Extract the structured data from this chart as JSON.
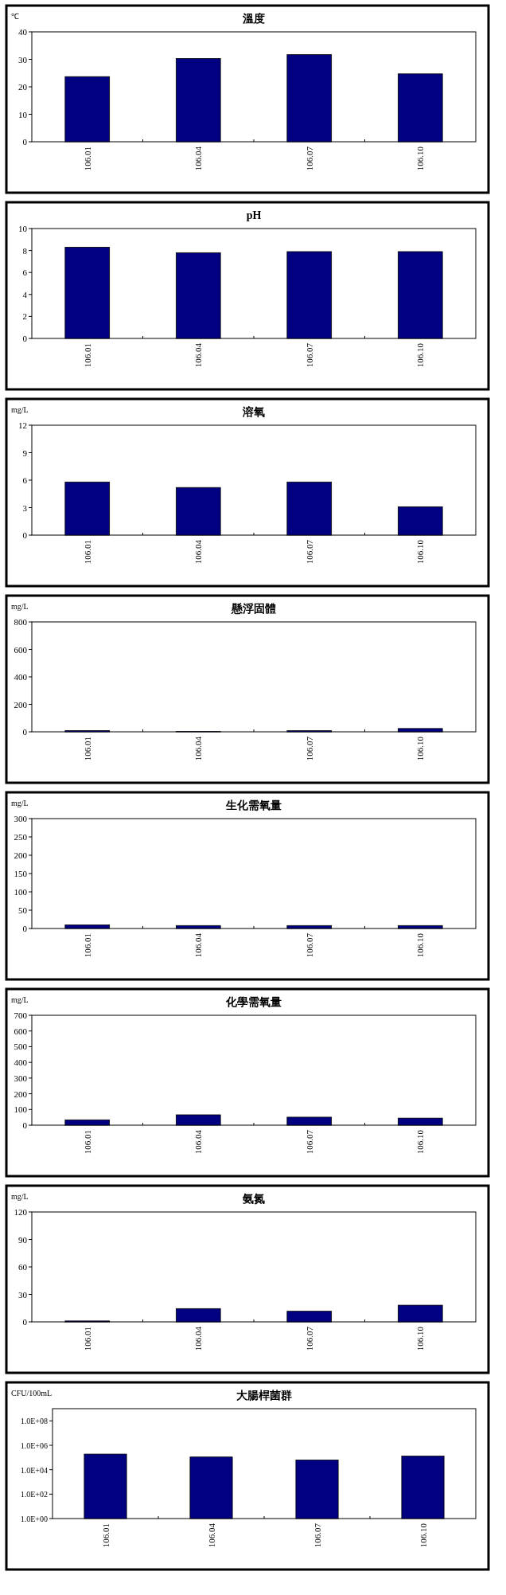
{
  "chart_data": [
    {
      "type": "bar",
      "title": "溫度",
      "ylabel": "℃",
      "categories": [
        "106.01",
        "106.04",
        "106.07",
        "106.10"
      ],
      "values": [
        23.7,
        30.3,
        31.7,
        24.7
      ],
      "color": "#000080",
      "ylim": [
        0,
        40
      ],
      "yticks": [
        0,
        10,
        20,
        30,
        40
      ]
    },
    {
      "type": "bar",
      "title": "pH",
      "categories": [
        "106.01",
        "106.04",
        "106.07",
        "106.10"
      ],
      "values": [
        8.3,
        7.8,
        7.9,
        7.9
      ],
      "color": "#000080",
      "ylim": [
        0,
        10
      ],
      "yticks": [
        0,
        2,
        4,
        6,
        8,
        10
      ]
    },
    {
      "type": "bar",
      "title": "溶氧",
      "ylabel": "mg/L",
      "categories": [
        "106.01",
        "106.04",
        "106.07",
        "106.10"
      ],
      "values": [
        5.8,
        5.2,
        5.8,
        3.1
      ],
      "color": "#000080",
      "ylim": [
        0,
        12
      ],
      "yticks": [
        0,
        3,
        6,
        9,
        12
      ]
    },
    {
      "type": "bar",
      "title": "懸浮固體",
      "ylabel": "mg/L",
      "categories": [
        "106.01",
        "106.04",
        "106.07",
        "106.10"
      ],
      "values": [
        9,
        2,
        8,
        24
      ],
      "color": "#000080",
      "ylim": [
        0,
        800
      ],
      "yticks": [
        0,
        200,
        400,
        600,
        800
      ]
    },
    {
      "type": "bar",
      "title": "生化需氧量",
      "ylabel": "mg/L",
      "categories": [
        "106.01",
        "106.04",
        "106.07",
        "106.10"
      ],
      "values": [
        10,
        8,
        8,
        8
      ],
      "color": "#000080",
      "ylim": [
        0,
        300
      ],
      "yticks": [
        0,
        50,
        100,
        150,
        200,
        250,
        300
      ]
    },
    {
      "type": "bar",
      "title": "化學需氧量",
      "ylabel": "mg/L",
      "categories": [
        "106.01",
        "106.04",
        "106.07",
        "106.10"
      ],
      "values": [
        34,
        66,
        51,
        45
      ],
      "color": "#000080",
      "ylim": [
        0,
        700
      ],
      "yticks": [
        0,
        100,
        200,
        300,
        400,
        500,
        600,
        700
      ]
    },
    {
      "type": "bar",
      "title": "氨氮",
      "ylabel": "mg/L",
      "categories": [
        "106.01",
        "106.04",
        "106.07",
        "106.10"
      ],
      "values": [
        1,
        14.5,
        11.6,
        18.2
      ],
      "color": "#000080",
      "ylim": [
        0,
        120
      ],
      "yticks": [
        0,
        30,
        60,
        90,
        120
      ]
    },
    {
      "type": "bar",
      "title": "大腸桿菌群",
      "ylabel": "CFU/100mL",
      "categories": [
        "106.01",
        "106.04",
        "106.07",
        "106.10"
      ],
      "values": [
        190000,
        110000,
        63000,
        130000
      ],
      "color": "#000080",
      "log": true,
      "ylim": [
        1,
        1000000000
      ],
      "yticks": [
        {
          "value": 1,
          "label": "1.0E+00"
        },
        {
          "value": 100,
          "label": "1.0E+02"
        },
        {
          "value": 10000,
          "label": "1.0E+04"
        },
        {
          "value": 1000000,
          "label": "1.0E+06"
        },
        {
          "value": 100000000,
          "label": "1.0E+08"
        }
      ]
    }
  ]
}
